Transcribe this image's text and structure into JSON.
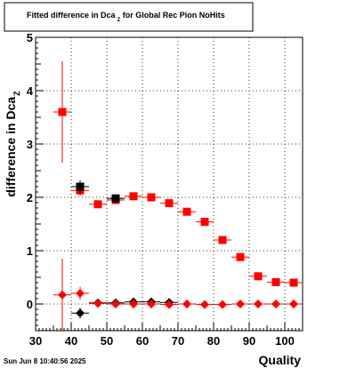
{
  "chart_data": {
    "type": "scatter",
    "title_main": "Fitted difference in Dca",
    "title_sub": "Z",
    "title_rest": " for Global Rec Pion NoHits",
    "ylabel_main": "difference in Dca",
    "ylabel_sub": "Z",
    "xlabel": "Quality",
    "timestamp": "Sun Jun  8 10:40:56 2025",
    "xlim": [
      30,
      105
    ],
    "ylim": [
      -0.5,
      5
    ],
    "grid": true,
    "x_ticks": [
      30,
      40,
      50,
      60,
      70,
      80,
      90,
      100
    ],
    "y_ticks": [
      0,
      1,
      2,
      3,
      4,
      5
    ],
    "series": [
      {
        "marker": "square",
        "color": "#ff0000",
        "points": [
          {
            "x": 37.5,
            "y": 3.6,
            "yerr": 0.95
          },
          {
            "x": 42.5,
            "y": 2.13,
            "yerr": 0.1
          },
          {
            "x": 47.5,
            "y": 1.87,
            "yerr": 0.04
          },
          {
            "x": 52.5,
            "y": 1.95,
            "yerr": 0.03
          },
          {
            "x": 57.5,
            "y": 2.02,
            "yerr": 0.02
          },
          {
            "x": 62.5,
            "y": 2.0,
            "yerr": 0.02
          },
          {
            "x": 67.5,
            "y": 1.89,
            "yerr": 0.02
          },
          {
            "x": 72.5,
            "y": 1.73,
            "yerr": 0.02
          },
          {
            "x": 77.5,
            "y": 1.54,
            "yerr": 0.02
          },
          {
            "x": 82.5,
            "y": 1.2,
            "yerr": 0.02
          },
          {
            "x": 87.5,
            "y": 0.88,
            "yerr": 0.02
          },
          {
            "x": 92.5,
            "y": 0.52,
            "yerr": 0.02
          },
          {
            "x": 97.5,
            "y": 0.41,
            "yerr": 0.02
          },
          {
            "x": 102.5,
            "y": 0.4,
            "yerr": 0.02
          }
        ]
      },
      {
        "marker": "square",
        "color": "#000000",
        "points": [
          {
            "x": 42.5,
            "y": 2.2,
            "yerr": 0.12
          },
          {
            "x": 52.5,
            "y": 1.98,
            "yerr": 0.03
          }
        ]
      },
      {
        "marker": "diamond",
        "color": "#000000",
        "points": [
          {
            "x": 42.5,
            "y": -0.17,
            "yerr": 0.1
          },
          {
            "x": 47.5,
            "y": 0.02,
            "yerr": 0.03
          },
          {
            "x": 52.5,
            "y": 0.02,
            "yerr": 0.02
          },
          {
            "x": 57.5,
            "y": 0.04,
            "yerr": 0.02
          },
          {
            "x": 62.5,
            "y": 0.04,
            "yerr": 0.02
          },
          {
            "x": 67.5,
            "y": 0.03,
            "yerr": 0.02
          }
        ]
      },
      {
        "marker": "diamond",
        "color": "#ff0000",
        "points": [
          {
            "x": 37.5,
            "y": 0.17,
            "yerr": 0.68
          },
          {
            "x": 42.5,
            "y": 0.2,
            "yerr": 0.12
          },
          {
            "x": 47.5,
            "y": 0.01,
            "yerr": 0.03
          },
          {
            "x": 52.5,
            "y": 0.0,
            "yerr": 0.02
          },
          {
            "x": 57.5,
            "y": 0.0,
            "yerr": 0.02
          },
          {
            "x": 62.5,
            "y": 0.0,
            "yerr": 0.02
          },
          {
            "x": 67.5,
            "y": -0.01,
            "yerr": 0.02
          },
          {
            "x": 72.5,
            "y": 0.0,
            "yerr": 0.02
          },
          {
            "x": 77.5,
            "y": -0.01,
            "yerr": 0.02
          },
          {
            "x": 82.5,
            "y": -0.01,
            "yerr": 0.02
          },
          {
            "x": 87.5,
            "y": 0.0,
            "yerr": 0.02
          },
          {
            "x": 92.5,
            "y": 0.0,
            "yerr": 0.02
          },
          {
            "x": 97.5,
            "y": 0.0,
            "yerr": 0.02
          },
          {
            "x": 102.5,
            "y": 0.0,
            "yerr": 0.02
          }
        ]
      }
    ]
  }
}
